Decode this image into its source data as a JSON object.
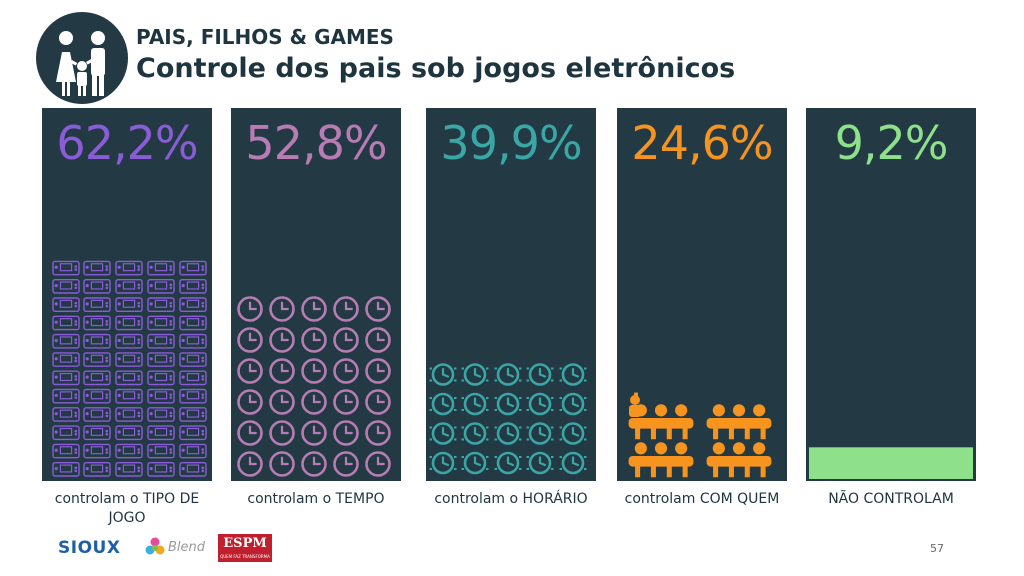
{
  "header": {
    "title": "PAIS, FILHOS & GAMES",
    "subtitle": "Controle dos pais sob jogos eletrônicos"
  },
  "chart_data": {
    "type": "bar",
    "categories": [
      "controlam o TIPO DE JOGO",
      "controlam o TEMPO",
      "controlam o HORÁRIO",
      "controlam COM QUEM",
      "NÃO CONTROLAM"
    ],
    "values": [
      62.2,
      52.8,
      39.9,
      24.6,
      9.2
    ],
    "value_labels": [
      "62,2%",
      "52,8%",
      "39,9%",
      "24,6%",
      "9,2%"
    ],
    "icon_types": [
      "handheld-console-icon",
      "clock-icon",
      "alarm-clock-icon",
      "group-icon",
      "solid-bar"
    ],
    "colors": [
      "#8a5cd6",
      "#b87cb4",
      "#3aa6a6",
      "#f7941d",
      "#8ee08a"
    ]
  },
  "footer": {
    "logos": {
      "sioux": "SIOUX",
      "blend": "Blend",
      "espm": "ESPM",
      "espm_tagline": "QUEM FAZ TRANSFORMA"
    },
    "page_number": "57"
  },
  "colors": {
    "panel": "#233a45",
    "text": "#1e3540"
  }
}
